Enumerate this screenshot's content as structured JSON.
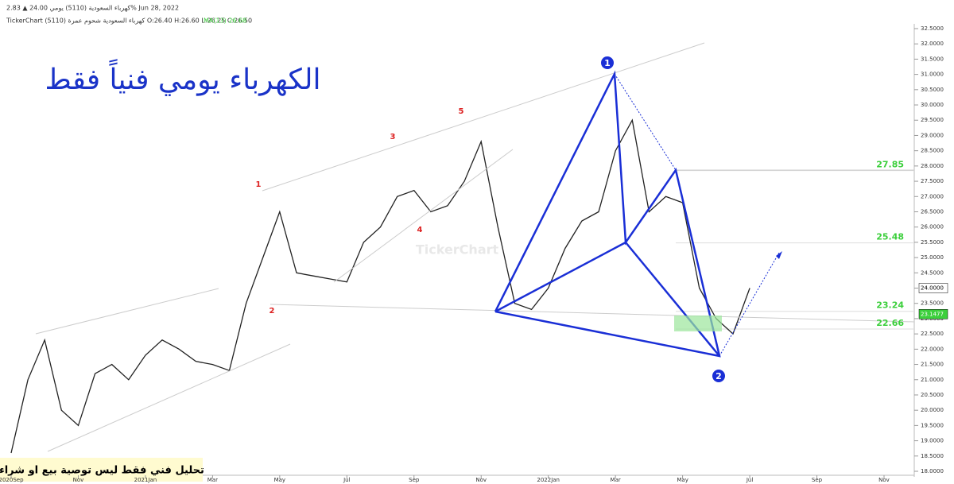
{
  "chart_data": {
    "type": "line",
    "info_line": "كهرباء السعودية (5110)  يومي  24.00 ▲ 2.83%  Jun 28, 2022",
    "ohlc_line": "TickerChart كهرباء السعودية شحوم عمرة (5110) O:26.40 H:26.60 L:26.25 C:26.50",
    "ma_label": "MA(13) 26.68",
    "title": "الكهرباء يومي فنياً فقط",
    "note": "تحليل فني فقط  ليس توصية بيع او شراء",
    "watermark": "TickerChart",
    "wave_labels": [
      "1",
      "2",
      "3",
      "4",
      "5"
    ],
    "pattern_points": [
      "1",
      "2"
    ],
    "categories": [
      "2020Sep",
      null,
      null,
      null,
      "Nov",
      null,
      null,
      null,
      "2021Jan",
      null,
      null,
      null,
      "Mar",
      null,
      null,
      null,
      "May",
      null,
      null,
      null,
      "Jul",
      null,
      null,
      null,
      "Sep",
      null,
      null,
      null,
      "Nov",
      null,
      null,
      null,
      "2022Jan",
      null,
      null,
      null,
      "Mar",
      null,
      null,
      null,
      "May",
      null,
      null,
      null,
      "Jul",
      null,
      null,
      null,
      "Sep",
      null,
      null,
      null,
      "Nov",
      null
    ],
    "values": [
      18.6,
      21.0,
      22.3,
      20.0,
      19.5,
      21.2,
      21.5,
      21.0,
      21.8,
      22.3,
      22.0,
      21.6,
      21.5,
      21.3,
      23.5,
      25.0,
      26.5,
      24.5,
      24.4,
      24.3,
      24.2,
      25.5,
      26.0,
      27.0,
      27.2,
      26.5,
      26.7,
      27.5,
      28.8,
      26.0,
      23.5,
      23.3,
      24.0,
      25.3,
      26.2,
      26.5,
      28.5,
      29.5,
      26.5,
      27.0,
      26.8,
      24.0,
      23.0,
      22.5,
      24.0,
      null,
      null,
      null,
      null,
      null,
      null,
      null,
      null,
      null
    ],
    "color": "#222222",
    "levels": [
      27.85,
      25.48,
      23.24,
      22.66
    ],
    "level_color": "#3ccf3c",
    "last_price": {
      "value": 24,
      "label": "24.0000"
    },
    "ma_price": {
      "value": 23.1477,
      "label": "23.1477"
    },
    "ylim": [
      18,
      32.5
    ],
    "yticks": [
      {
        "value": 18,
        "label": "18.0000"
      },
      {
        "value": 18.5,
        "label": "18.5000"
      },
      {
        "value": 19,
        "label": "19.0000"
      },
      {
        "value": 19.5,
        "label": "19.5000"
      },
      {
        "value": 20,
        "label": "20.0000"
      },
      {
        "value": 20.5,
        "label": "20.5000"
      },
      {
        "value": 21,
        "label": "21.0000"
      },
      {
        "value": 21.5,
        "label": "21.5000"
      },
      {
        "value": 22,
        "label": "22.0000"
      },
      {
        "value": 22.5,
        "label": "22.5000"
      },
      {
        "value": 23,
        "label": "23.0000"
      },
      {
        "value": 23.5,
        "label": "23.5000"
      },
      {
        "value": 24,
        "label": "24.0000"
      },
      {
        "value": 24.5,
        "label": "24.5000"
      },
      {
        "value": 25,
        "label": "25.0000"
      },
      {
        "value": 25.5,
        "label": "25.5000"
      },
      {
        "value": 26,
        "label": "26.0000"
      },
      {
        "value": 26.5,
        "label": "26.5000"
      },
      {
        "value": 27,
        "label": "27.0000"
      },
      {
        "value": 27.5,
        "label": "27.5000"
      },
      {
        "value": 28,
        "label": "28.0000"
      },
      {
        "value": 28.5,
        "label": "28.5000"
      },
      {
        "value": 29,
        "label": "29.0000"
      },
      {
        "value": 29.5,
        "label": "29.5000"
      },
      {
        "value": 30,
        "label": "30.0000"
      },
      {
        "value": 30.5,
        "label": "30.5000"
      },
      {
        "value": 31,
        "label": "31.0000"
      },
      {
        "value": 31.5,
        "label": "31.5000"
      },
      {
        "value": 32,
        "label": "32.0000"
      },
      {
        "value": 32.5,
        "label": "32.5000"
      }
    ]
  }
}
